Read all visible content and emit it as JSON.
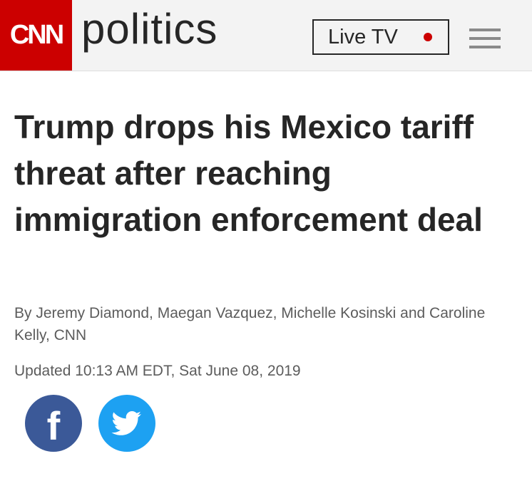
{
  "header": {
    "logo": "CNN",
    "section": "politics",
    "live_button": "Live TV"
  },
  "article": {
    "headline": "Trump drops his Mexico tariff threat after reaching immigration enforcement deal",
    "byline": "By Jeremy Diamond, Maegan Vazquez, Michelle Kosinski and Caroline Kelly, CNN",
    "timestamp": "Updated 10:13 AM EDT, Sat June 08, 2019",
    "share": {
      "facebook": "f"
    }
  }
}
